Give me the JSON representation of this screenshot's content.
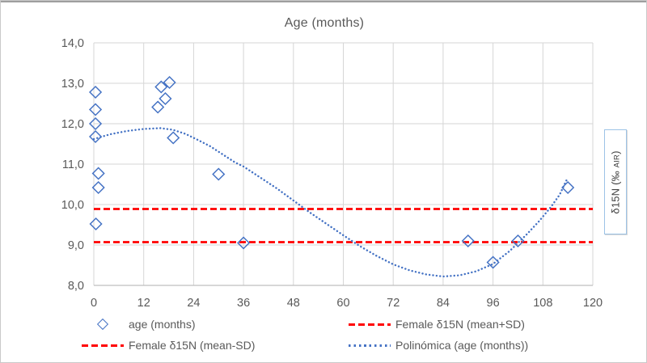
{
  "chart_data": {
    "type": "scatter",
    "title": "Age (months)",
    "y2label_main": "δ15N (‰ ",
    "y2label_sub": "AIR",
    "y2label_close": ")",
    "xlim": [
      0,
      120
    ],
    "ylim": [
      8,
      14
    ],
    "grid": true,
    "x_ticks": [
      0,
      12,
      24,
      36,
      48,
      60,
      72,
      84,
      96,
      108,
      120
    ],
    "y_ticks": [
      {
        "value": 14,
        "label": "14,0"
      },
      {
        "value": 13,
        "label": "13,0"
      },
      {
        "value": 12,
        "label": "12,0"
      },
      {
        "value": 11,
        "label": "11,0"
      },
      {
        "value": 10,
        "label": "10,0"
      },
      {
        "value": 9,
        "label": "9,0"
      },
      {
        "value": 8,
        "label": "8,0"
      }
    ],
    "colors": {
      "marker_blue": "#4472C4",
      "trend_blue": "#4472C4",
      "line_red": "#FF0000",
      "gridline": "#D6D6D6",
      "axis_line": "#BFBFBF",
      "text_gray": "#595959"
    },
    "series": [
      {
        "name": "age (months)",
        "kind": "scatter_open_diamonds",
        "points": [
          [
            0.4,
            12.78
          ],
          [
            0.4,
            12.35
          ],
          [
            0.4,
            12.0
          ],
          [
            0.4,
            11.68
          ],
          [
            1.1,
            10.77
          ],
          [
            1.1,
            10.42
          ],
          [
            0.5,
            9.52
          ],
          [
            15.4,
            12.41
          ],
          [
            16.2,
            12.91
          ],
          [
            17.2,
            12.62
          ],
          [
            18.2,
            13.02
          ],
          [
            19.1,
            11.65
          ],
          [
            30,
            10.75
          ],
          [
            36,
            9.05
          ],
          [
            90,
            9.1
          ],
          [
            96,
            8.57
          ],
          [
            102,
            9.1
          ],
          [
            114,
            10.42
          ]
        ]
      },
      {
        "name": "Female δ15N (mean+SD)",
        "kind": "hline_dashed",
        "value": 9.89
      },
      {
        "name": "Female δ15N (mean-SD)",
        "kind": "hline_dashed",
        "value": 9.07
      },
      {
        "name": "Polinómica (age (months))",
        "kind": "trend_dotted",
        "points": [
          [
            0,
            11.62
          ],
          [
            4,
            11.74
          ],
          [
            8,
            11.82
          ],
          [
            12,
            11.87
          ],
          [
            16,
            11.89
          ],
          [
            19,
            11.85
          ],
          [
            22,
            11.75
          ],
          [
            25,
            11.6
          ],
          [
            28,
            11.44
          ],
          [
            31,
            11.24
          ],
          [
            34,
            11.04
          ],
          [
            36,
            10.94
          ],
          [
            40,
            10.67
          ],
          [
            44,
            10.4
          ],
          [
            48,
            10.1
          ],
          [
            52,
            9.8
          ],
          [
            56,
            9.52
          ],
          [
            60,
            9.24
          ],
          [
            64,
            8.97
          ],
          [
            68,
            8.73
          ],
          [
            72,
            8.52
          ],
          [
            76,
            8.37
          ],
          [
            80,
            8.27
          ],
          [
            84,
            8.22
          ],
          [
            88,
            8.25
          ],
          [
            92,
            8.35
          ],
          [
            96,
            8.53
          ],
          [
            100,
            8.85
          ],
          [
            104,
            9.25
          ],
          [
            107,
            9.58
          ],
          [
            110,
            9.95
          ],
          [
            112,
            10.24
          ],
          [
            114,
            10.67
          ]
        ]
      }
    ],
    "legend": {
      "position": "bottom-two-columns",
      "items": [
        {
          "marker": "open-diamond",
          "label": "age (months)"
        },
        {
          "marker": "red-dashed-line",
          "label": "Female δ15N (mean+SD)"
        },
        {
          "marker": "red-dashed-line",
          "label": "Female δ15N (mean-SD)"
        },
        {
          "marker": "blue-dotted-line",
          "label": "Polinómica (age (months))"
        }
      ]
    }
  }
}
